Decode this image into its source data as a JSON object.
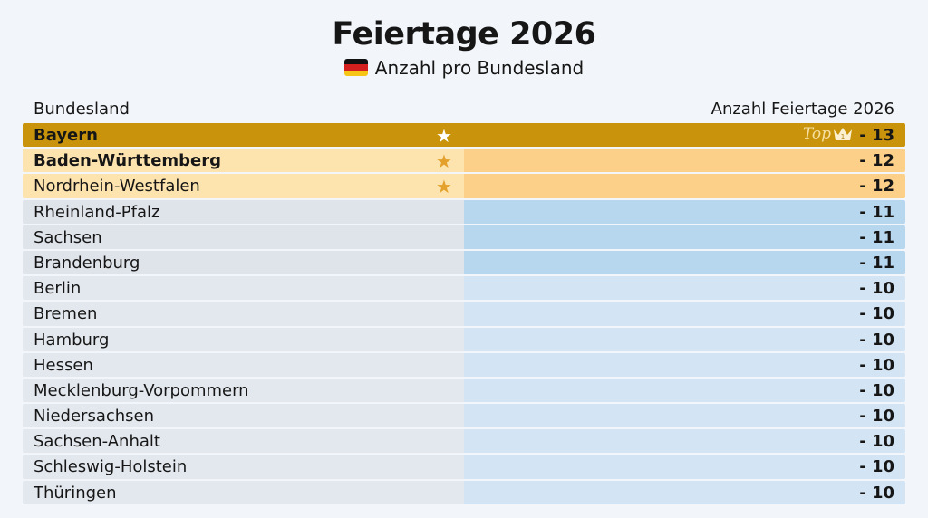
{
  "header": {
    "title": "Feiertage 2026",
    "subtitle": "Anzahl pro Bundesland",
    "flag_icon": "germany-flag-icon"
  },
  "table": {
    "col_state": "Bundesland",
    "col_count": "Anzahl Feiertage 2026",
    "top_label": "Top",
    "crown_rank": "1"
  },
  "colors": {
    "gold": "#c9940b",
    "peach": "#fde3ae",
    "peach_right": "#fdd08a",
    "blue_11": "#b7d7ef",
    "blue_10": "#d3e5f4",
    "gray": "#dfe3ea",
    "star": "#e3a02a"
  },
  "chart_data": {
    "type": "table",
    "columns": [
      "Bundesland",
      "Anzahl Feiertage 2026"
    ],
    "rows": [
      {
        "state": "Bayern",
        "value": "- 13",
        "count": 13,
        "star": true,
        "top": true
      },
      {
        "state": "Baden-Württemberg",
        "value": "- 12",
        "count": 12,
        "star": true
      },
      {
        "state": "Nordrhein-Westfalen",
        "value": "- 12",
        "count": 12,
        "star": true
      },
      {
        "state": "Rheinland-Pfalz",
        "value": "- 11",
        "count": 11
      },
      {
        "state": "Sachsen",
        "value": "- 11",
        "count": 11
      },
      {
        "state": "Brandenburg",
        "value": "- 11",
        "count": 11
      },
      {
        "state": "Berlin",
        "value": "- 10",
        "count": 10
      },
      {
        "state": "Bremen",
        "value": "- 10",
        "count": 10
      },
      {
        "state": "Hamburg",
        "value": "- 10",
        "count": 10
      },
      {
        "state": "Hessen",
        "value": "- 10",
        "count": 10
      },
      {
        "state": "Mecklenburg-Vorpommern",
        "value": "- 10",
        "count": 10
      },
      {
        "state": "Niedersachsen",
        "value": "- 10",
        "count": 10
      },
      {
        "state": "Sachsen-Anhalt",
        "value": "- 10",
        "count": 10
      },
      {
        "state": "Schleswig-Holstein",
        "value": "- 10",
        "count": 10
      },
      {
        "state": "Thüringen",
        "value": "- 10",
        "count": 10
      }
    ]
  }
}
